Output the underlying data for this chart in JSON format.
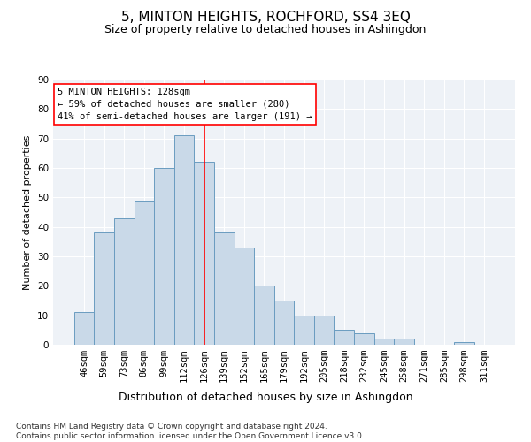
{
  "title": "5, MINTON HEIGHTS, ROCHFORD, SS4 3EQ",
  "subtitle": "Size of property relative to detached houses in Ashingdon",
  "xlabel": "Distribution of detached houses by size in Ashingdon",
  "ylabel": "Number of detached properties",
  "categories": [
    "46sqm",
    "59sqm",
    "73sqm",
    "86sqm",
    "99sqm",
    "112sqm",
    "126sqm",
    "139sqm",
    "152sqm",
    "165sqm",
    "179sqm",
    "192sqm",
    "205sqm",
    "218sqm",
    "232sqm",
    "245sqm",
    "258sqm",
    "271sqm",
    "285sqm",
    "298sqm",
    "311sqm"
  ],
  "values": [
    11,
    38,
    43,
    49,
    60,
    71,
    62,
    38,
    33,
    20,
    15,
    10,
    10,
    5,
    4,
    2,
    2,
    0,
    0,
    1,
    0
  ],
  "bar_color": "#c9d9e8",
  "bar_edge_color": "#6a9cc0",
  "vline_x": 6.0,
  "vline_color": "red",
  "annotation_line1": "5 MINTON HEIGHTS: 128sqm",
  "annotation_line2": "← 59% of detached houses are smaller (280)",
  "annotation_line3": "41% of semi-detached houses are larger (191) →",
  "annotation_box_color": "white",
  "annotation_box_edge_color": "red",
  "ylim": [
    0,
    90
  ],
  "yticks": [
    0,
    10,
    20,
    30,
    40,
    50,
    60,
    70,
    80,
    90
  ],
  "bg_color": "#eef2f7",
  "footer": "Contains HM Land Registry data © Crown copyright and database right 2024.\nContains public sector information licensed under the Open Government Licence v3.0.",
  "title_fontsize": 11,
  "subtitle_fontsize": 9,
  "xlabel_fontsize": 9,
  "ylabel_fontsize": 8,
  "tick_fontsize": 7.5,
  "annotation_fontsize": 7.5,
  "footer_fontsize": 6.5
}
